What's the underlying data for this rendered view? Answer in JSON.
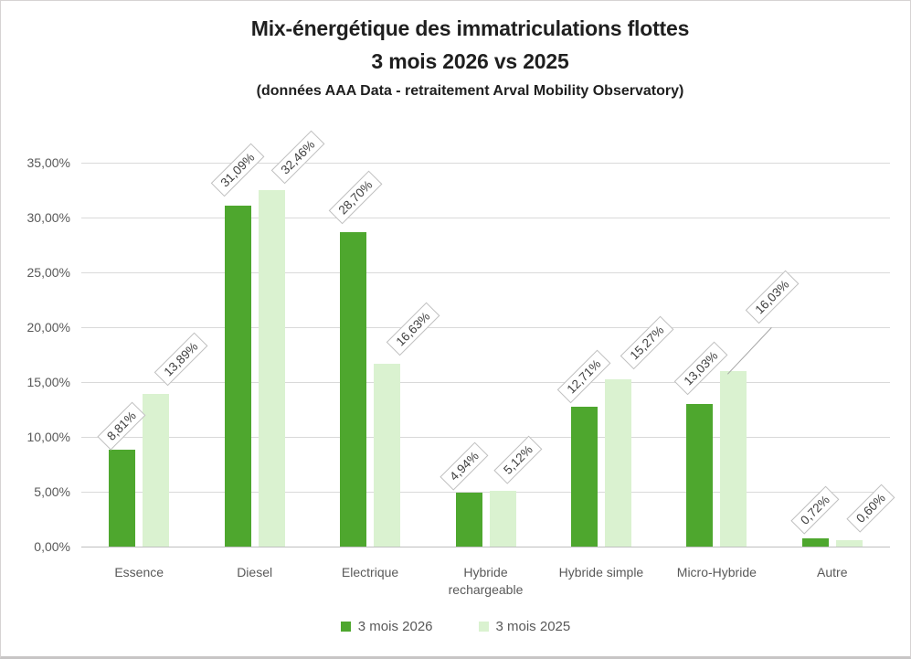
{
  "header": {
    "title_line1": "Mix-énergétique des immatriculations flottes",
    "title_line2": "3 mois 2026 vs 2025",
    "subtitle": "(données AAA Data - retraitement Arval Mobility Observatory)"
  },
  "chart_data": {
    "type": "bar",
    "title": "Mix-énergétique des immatriculations flottes 3 mois 2026 vs 2025",
    "subtitle": "(données AAA Data - retraitement Arval Mobility Observatory)",
    "categories": [
      "Essence",
      "Diesel",
      "Electrique",
      "Hybride rechargeable",
      "Hybride simple",
      "Micro-Hybride",
      "Autre"
    ],
    "series": [
      {
        "name": "3 mois 2026",
        "color": "#4EA72E",
        "values": [
          8.81,
          31.09,
          28.7,
          4.94,
          12.71,
          13.03,
          0.72
        ],
        "labels": [
          "8,81%",
          "31,09%",
          "28,70%",
          "4,94%",
          "12,71%",
          "13,03%",
          "0,72%"
        ]
      },
      {
        "name": "3 mois 2025",
        "color": "#DAF2D0",
        "values": [
          13.89,
          32.46,
          16.63,
          5.12,
          15.27,
          16.03,
          0.6
        ],
        "labels": [
          "13,89%",
          "32,46%",
          "16,63%",
          "5,12%",
          "15,27%",
          "16,03%",
          "0,60%"
        ]
      }
    ],
    "y_axis": {
      "min": 0,
      "max": 35,
      "step": 5,
      "tick_labels": [
        "0,00%",
        "5,00%",
        "10,00%",
        "15,00%",
        "20,00%",
        "25,00%",
        "30,00%",
        "35,00%"
      ]
    },
    "grid": true,
    "legend_position": "bottom",
    "data_labels": {
      "rotation_deg": -45,
      "boxed": true,
      "callout_with_leader": "16,03%"
    },
    "colors": {
      "gridline": "#D9D9D9",
      "axis_line": "#BFBFBF",
      "axis_text": "#595959",
      "label_text": "#3F3F3F",
      "label_border": "#BFBFBF",
      "title_text": "#1F1F1F"
    }
  }
}
